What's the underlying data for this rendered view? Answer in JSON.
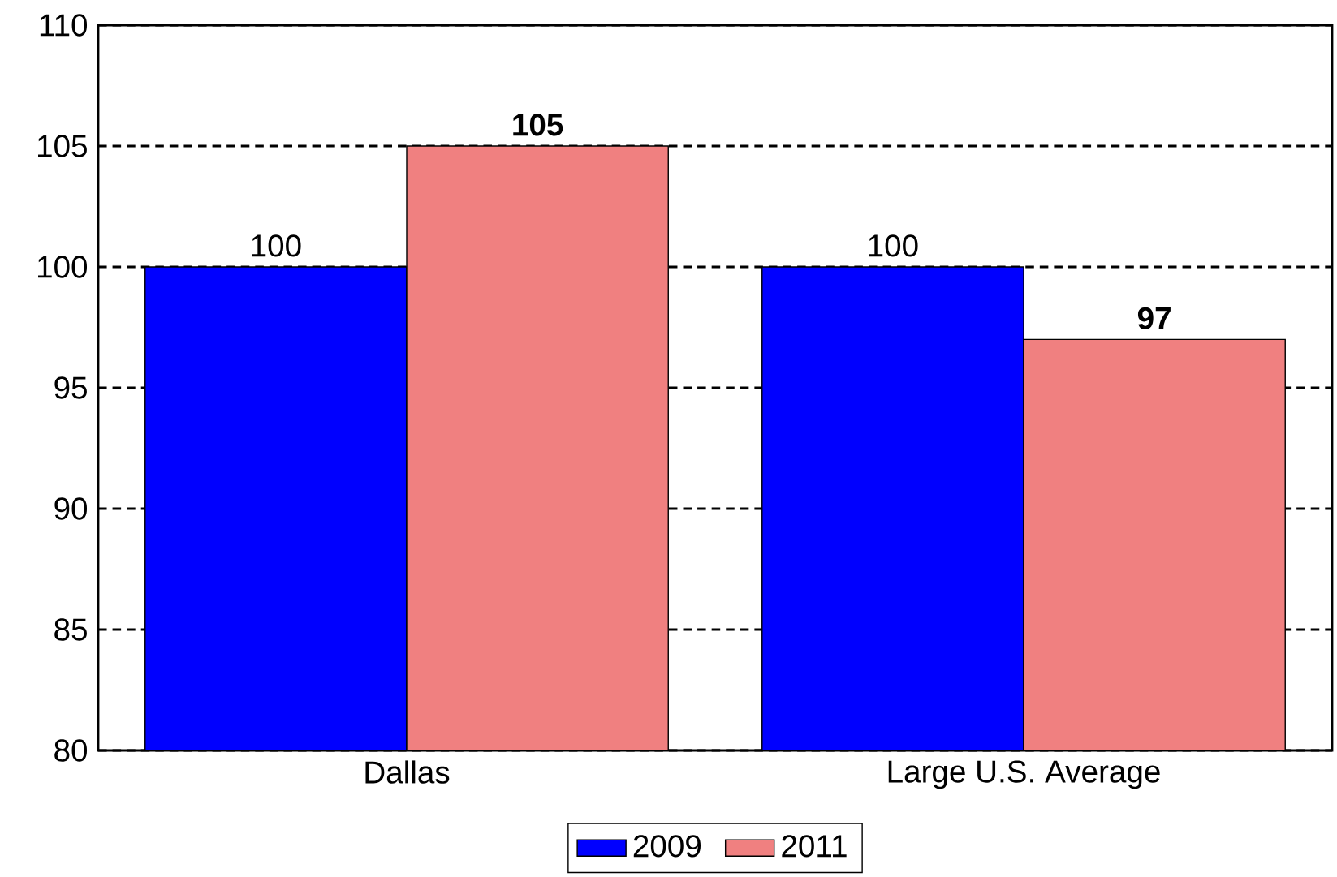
{
  "chart_data": {
    "type": "bar",
    "categories": [
      "Dallas",
      "Large U.S. Average"
    ],
    "series": [
      {
        "name": "2009",
        "color": "#0000ff",
        "values": [
          100,
          100
        ],
        "value_labels": [
          "100",
          "100"
        ]
      },
      {
        "name": "2011",
        "color": "#f08080",
        "values": [
          105,
          97
        ],
        "value_labels": [
          "**105**",
          "**97**"
        ]
      }
    ],
    "ylim": [
      80,
      110
    ],
    "yticks": [
      80,
      85,
      90,
      95,
      100,
      105,
      110
    ],
    "grid": "y",
    "legend": "bottom"
  }
}
